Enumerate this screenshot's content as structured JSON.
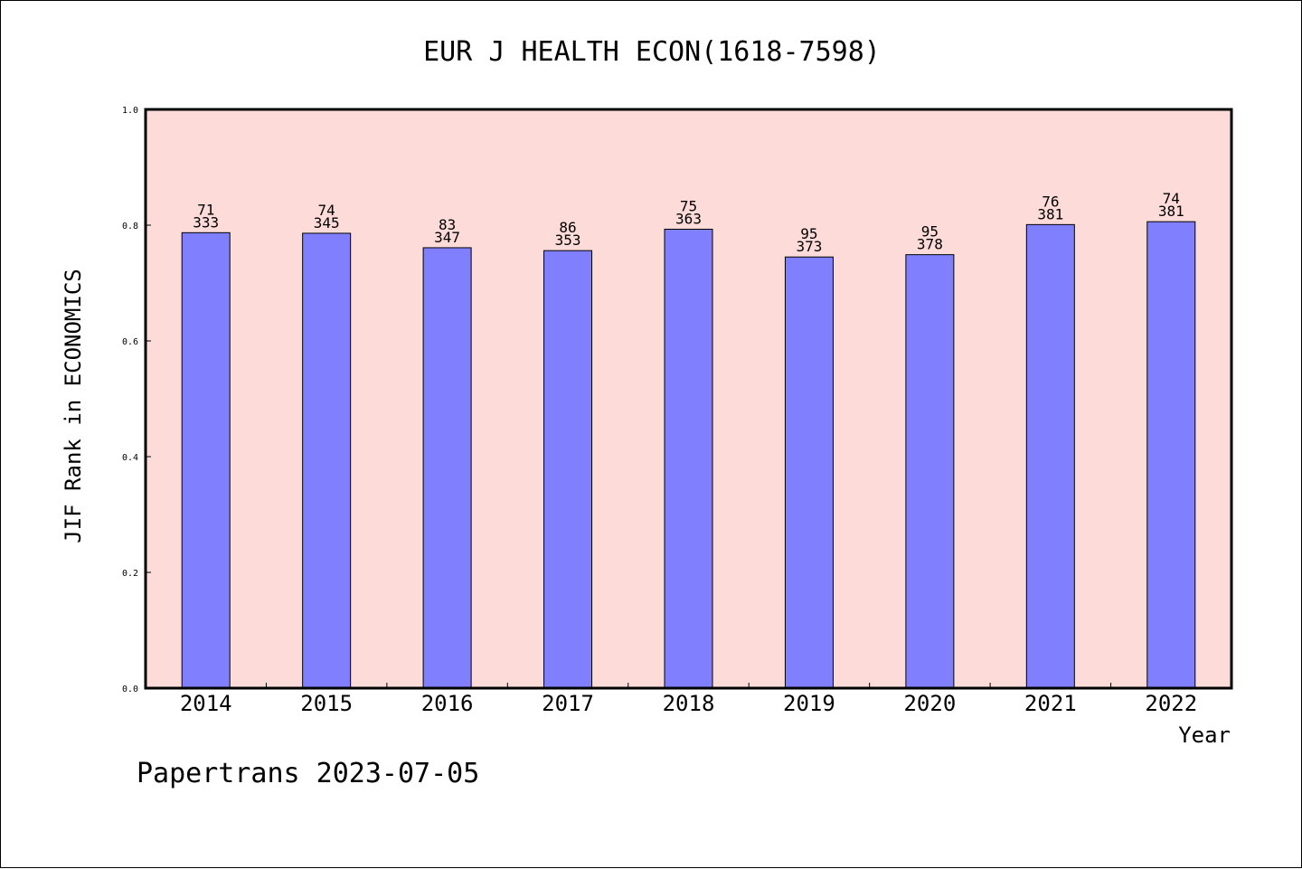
{
  "chart_data": {
    "type": "bar",
    "title": "EUR J HEALTH ECON(1618-7598)",
    "xlabel": "Year",
    "ylabel": "JIF Rank in ECONOMICS",
    "ylim": [
      0,
      1.0
    ],
    "yticks": [
      "0.0",
      "0.2",
      "0.4",
      "0.6",
      "0.8",
      "1.0"
    ],
    "categories": [
      "2014",
      "2015",
      "2016",
      "2017",
      "2018",
      "2019",
      "2020",
      "2021",
      "2022"
    ],
    "values": [
      0.787,
      0.786,
      0.761,
      0.756,
      0.793,
      0.745,
      0.749,
      0.801,
      0.806
    ],
    "rank": [
      "71",
      "74",
      "83",
      "86",
      "75",
      "95",
      "95",
      "76",
      "74"
    ],
    "total": [
      "333",
      "345",
      "347",
      "353",
      "363",
      "373",
      "378",
      "381",
      "381"
    ],
    "grid": false,
    "colors": {
      "plot_background": "#fddbd8",
      "bar_fill": "#8080ff",
      "bar_stroke": "#000000"
    }
  },
  "footer": "Papertrans 2023-07-05"
}
